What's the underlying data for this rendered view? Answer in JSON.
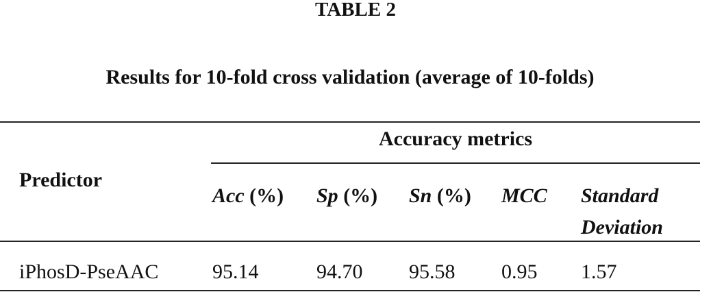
{
  "header": {
    "label": "TABLE 2",
    "title": "Results for 10-fold cross validation (average of 10-folds)"
  },
  "table": {
    "row_header": "Predictor",
    "group_header": "Accuracy metrics",
    "columns": [
      {
        "name": "Acc",
        "unit": "(%)"
      },
      {
        "name": "Sp",
        "unit": "(%)"
      },
      {
        "name": "Sn",
        "unit": "(%)"
      },
      {
        "name": "MCC"
      },
      {
        "name": "Standard Deviation"
      }
    ],
    "rows": [
      [
        "iPhosD-PseAAC",
        "95.14",
        "94.70",
        "95.58",
        "0.95",
        "1.57"
      ]
    ]
  }
}
